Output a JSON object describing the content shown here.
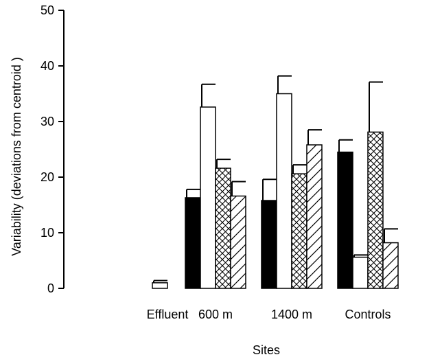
{
  "chart_data": {
    "type": "bar",
    "title": "",
    "xlabel": "Sites",
    "ylabel": "Variability   (deviations from centroid )",
    "categories": [
      "Effluent",
      "600 m",
      "1400 m",
      "Controls"
    ],
    "ylim": [
      0,
      50
    ],
    "yticks": [
      0,
      10,
      20,
      30,
      40,
      50
    ],
    "grid": false,
    "legend": "none",
    "series": [
      {
        "pattern": "solid-black",
        "values": [
          null,
          16.3,
          15.8,
          24.5
        ],
        "errors": [
          null,
          1.5,
          3.8,
          2.2
        ]
      },
      {
        "pattern": "white",
        "values": [
          1.0,
          32.6,
          35.0,
          5.6
        ],
        "errors": [
          0.4,
          4.1,
          3.2,
          0.4
        ]
      },
      {
        "pattern": "cross-hatch",
        "values": [
          null,
          21.6,
          20.6,
          28.1
        ],
        "errors": [
          null,
          1.6,
          1.6,
          9.0
        ]
      },
      {
        "pattern": "diagonal-hatch",
        "values": [
          null,
          16.6,
          25.8,
          8.2
        ],
        "errors": [
          null,
          2.6,
          2.7,
          2.5
        ]
      }
    ]
  }
}
